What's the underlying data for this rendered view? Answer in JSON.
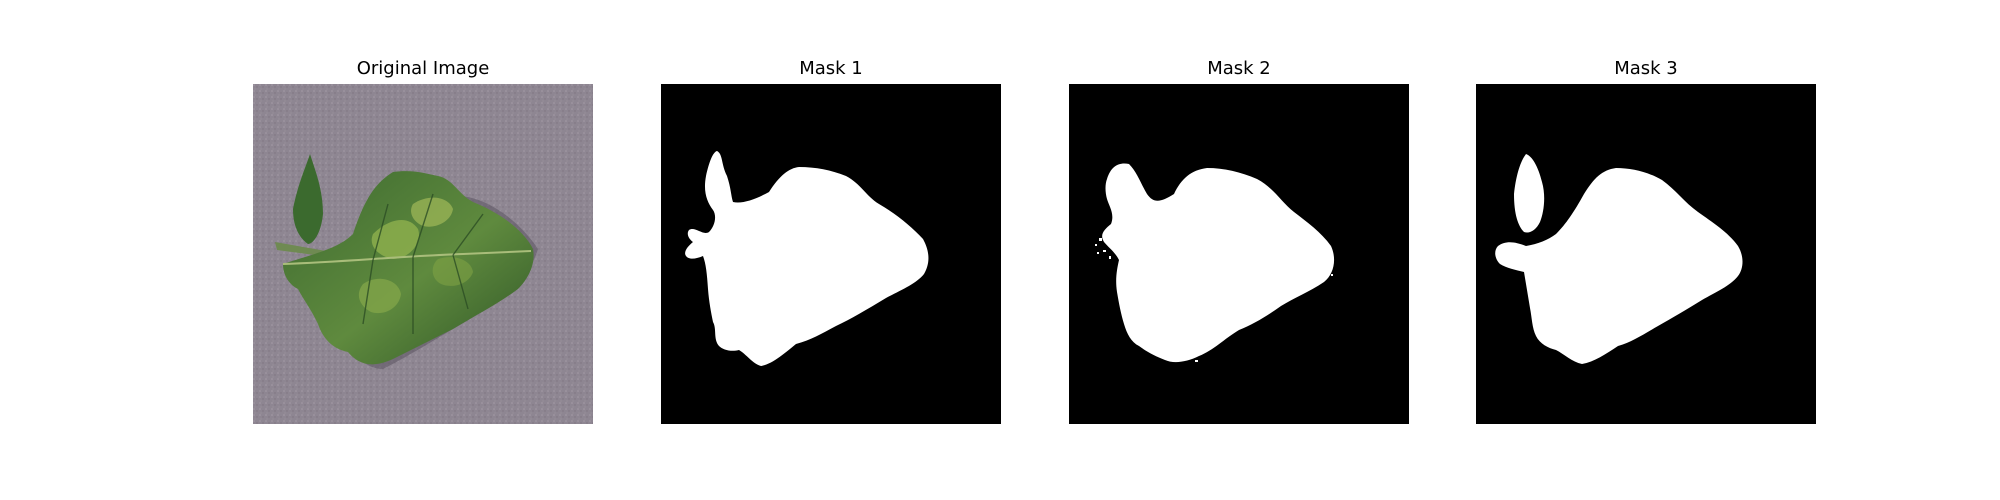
{
  "figure": {
    "panels": [
      {
        "id": "original",
        "title": "Original Image",
        "kind": "photo",
        "subject": "leaf-photo"
      },
      {
        "id": "mask1",
        "title": "Mask 1",
        "kind": "binary-mask"
      },
      {
        "id": "mask2",
        "title": "Mask 2",
        "kind": "binary-mask"
      },
      {
        "id": "mask3",
        "title": "Mask 3",
        "kind": "binary-mask"
      }
    ],
    "colors": {
      "background": "#ffffff",
      "mask_foreground": "#ffffff",
      "mask_background": "#000000",
      "photo_background": "#8f8793",
      "leaf_dark": "#2f5a28",
      "leaf_mid": "#4f7d39",
      "leaf_light": "#8fb04e"
    }
  }
}
